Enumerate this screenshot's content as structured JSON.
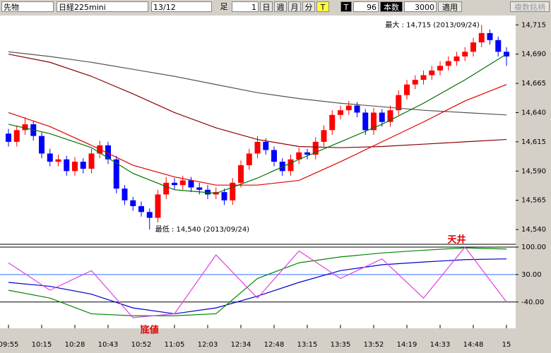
{
  "toolbar": {
    "market": "先物",
    "symbol": "日経225mini",
    "contract": "13/12",
    "bar_label": "足",
    "bar_size": "1",
    "day": "日",
    "week": "週",
    "month": "月",
    "minute": "分",
    "tick": "T",
    "t_label": "T",
    "t_value": "96",
    "count_label": "本数",
    "count_value": "3000",
    "apply": "適用",
    "multi": "複数銘柄"
  },
  "chart_data": [
    {
      "type": "candlestick",
      "categories": [
        "09:55",
        null,
        null,
        null,
        "10:15",
        null,
        null,
        null,
        "10:28",
        null,
        null,
        null,
        "10:43",
        null,
        null,
        null,
        "10:52",
        null,
        null,
        null,
        "11:05",
        null,
        null,
        null,
        "12:03",
        null,
        null,
        null,
        "12:34",
        null,
        null,
        null,
        "12:48",
        null,
        null,
        null,
        "13:15",
        null,
        null,
        null,
        "13:35",
        null,
        null,
        null,
        "13:52",
        null,
        null,
        null,
        "14:19",
        null,
        null,
        null,
        "14:33",
        null,
        null,
        null,
        "14:48",
        null,
        null,
        null,
        "15"
      ],
      "open": [
        14622,
        14615,
        14625,
        14630,
        14620,
        14605,
        14598,
        14600,
        14590,
        14598,
        14592,
        14605,
        14612,
        14600,
        14575,
        14565,
        14560,
        14555,
        14550,
        14570,
        14580,
        14578,
        14582,
        14576,
        14574,
        14570,
        14572,
        14565,
        14580,
        14595,
        14605,
        14615,
        14608,
        14598,
        14590,
        14600,
        14606,
        14604,
        14615,
        14625,
        14638,
        14642,
        14646,
        14640,
        14625,
        14640,
        14632,
        14642,
        14655,
        14664,
        14668,
        14672,
        14676,
        14680,
        14684,
        14688,
        14692,
        14700,
        14708,
        14702,
        14692
      ],
      "high": [
        14626,
        14629,
        14636,
        14633,
        14623,
        14609,
        14604,
        14603,
        14602,
        14601,
        14609,
        14616,
        14615,
        14603,
        14578,
        14568,
        14564,
        14558,
        14574,
        14585,
        14584,
        14586,
        14585,
        14580,
        14578,
        14576,
        14575,
        14584,
        14599,
        14609,
        14620,
        14618,
        14611,
        14601,
        14604,
        14610,
        14609,
        14619,
        14629,
        14642,
        14646,
        14650,
        14649,
        14643,
        14644,
        14643,
        14646,
        14659,
        14668,
        14672,
        14676,
        14680,
        14684,
        14688,
        14692,
        14696,
        14704,
        14715,
        14711,
        14705,
        14696
      ],
      "low": [
        14611,
        14611,
        14621,
        14616,
        14601,
        14594,
        14594,
        14586,
        14586,
        14588,
        14588,
        14601,
        14596,
        14571,
        14561,
        14556,
        14551,
        14540,
        14546,
        14566,
        14574,
        14574,
        14572,
        14570,
        14566,
        14566,
        14561,
        14561,
        14576,
        14591,
        14601,
        14604,
        14594,
        14586,
        14586,
        14596,
        14600,
        14600,
        14611,
        14621,
        14634,
        14638,
        14636,
        14621,
        14621,
        14628,
        14628,
        14638,
        14651,
        14660,
        14664,
        14668,
        14672,
        14676,
        14680,
        14684,
        14688,
        14696,
        14698,
        14688,
        14680
      ],
      "close": [
        14615,
        14625,
        14630,
        14620,
        14605,
        14598,
        14600,
        14590,
        14598,
        14592,
        14605,
        14612,
        14600,
        14575,
        14565,
        14560,
        14555,
        14550,
        14570,
        14580,
        14578,
        14582,
        14576,
        14574,
        14570,
        14572,
        14565,
        14580,
        14595,
        14605,
        14615,
        14608,
        14598,
        14590,
        14600,
        14606,
        14604,
        14615,
        14625,
        14638,
        14642,
        14646,
        14640,
        14625,
        14640,
        14632,
        14642,
        14655,
        14664,
        14668,
        14672,
        14676,
        14680,
        14684,
        14688,
        14692,
        14700,
        14708,
        14702,
        14692,
        14688
      ],
      "up_color": "#ff0000",
      "down_color": "#0000ff",
      "x": [
        0,
        5,
        10,
        15,
        20,
        25,
        30,
        35,
        40,
        45,
        50,
        55,
        60
      ],
      "series": [
        {
          "color": "#555555",
          "values": [
            14692,
            14688,
            14683,
            14677,
            14671,
            14664,
            14657,
            14652,
            14648,
            14645,
            14642,
            14640,
            14638
          ]
        },
        {
          "color": "#8b0000",
          "values": [
            14690,
            14683,
            14671,
            14656,
            14640,
            14627,
            14617,
            14611,
            14610,
            14611,
            14613,
            14615,
            14617
          ]
        },
        {
          "color": "#e00000",
          "values": [
            14640,
            14628,
            14612,
            14595,
            14585,
            14578,
            14578,
            14582,
            14598,
            14615,
            14632,
            14650,
            14664
          ]
        },
        {
          "color": "#007000",
          "values": [
            14630,
            14622,
            14610,
            14588,
            14574,
            14571,
            14584,
            14600,
            14615,
            14630,
            14648,
            14668,
            14690
          ]
        }
      ],
      "ylim": [
        14528,
        14723
      ],
      "yticks": [
        {
          "value": 14715,
          "label": "14,715"
        },
        {
          "value": 14690,
          "label": "14,690"
        },
        {
          "value": 14665,
          "label": "14,665"
        },
        {
          "value": 14640,
          "label": "14,640"
        },
        {
          "value": 14615,
          "label": "14,615"
        },
        {
          "value": 14590,
          "label": "14,590"
        },
        {
          "value": 14565,
          "label": "14,565"
        },
        {
          "value": 14540,
          "label": "14,540"
        }
      ],
      "annotations": [
        {
          "text": "最大 : 14,715 (2013/09/24)",
          "index": 57,
          "value": 14715
        },
        {
          "text": "最低 : 14,540 (2013/09/24)",
          "index": 17,
          "value": 14540
        }
      ]
    },
    {
      "type": "line",
      "x": [
        0,
        5,
        10,
        15,
        20,
        25,
        30,
        35,
        40,
        45,
        50,
        55,
        60
      ],
      "series": [
        {
          "color": "#0000cc",
          "values": [
            10,
            0,
            -20,
            -55,
            -70,
            -55,
            -25,
            10,
            40,
            55,
            62,
            68,
            70
          ]
        },
        {
          "color": "#008800",
          "values": [
            -10,
            -30,
            -70,
            -75,
            -75,
            -70,
            20,
            60,
            75,
            85,
            92,
            98,
            95
          ]
        },
        {
          "color": "#e040e0",
          "values": [
            60,
            -10,
            40,
            -80,
            -70,
            80,
            -30,
            90,
            20,
            70,
            -30,
            100,
            -40
          ]
        }
      ],
      "ylim": [
        -98,
        100
      ],
      "yticks": [
        {
          "value": 100,
          "label": "100.00"
        },
        {
          "value": 30,
          "label": "30.00"
        },
        {
          "value": -40,
          "label": "-40.00"
        }
      ],
      "annotations": [
        {
          "text": "天井",
          "index": 54,
          "value": 100
        },
        {
          "text": "底値",
          "index": 17,
          "value": -98
        }
      ]
    }
  ]
}
